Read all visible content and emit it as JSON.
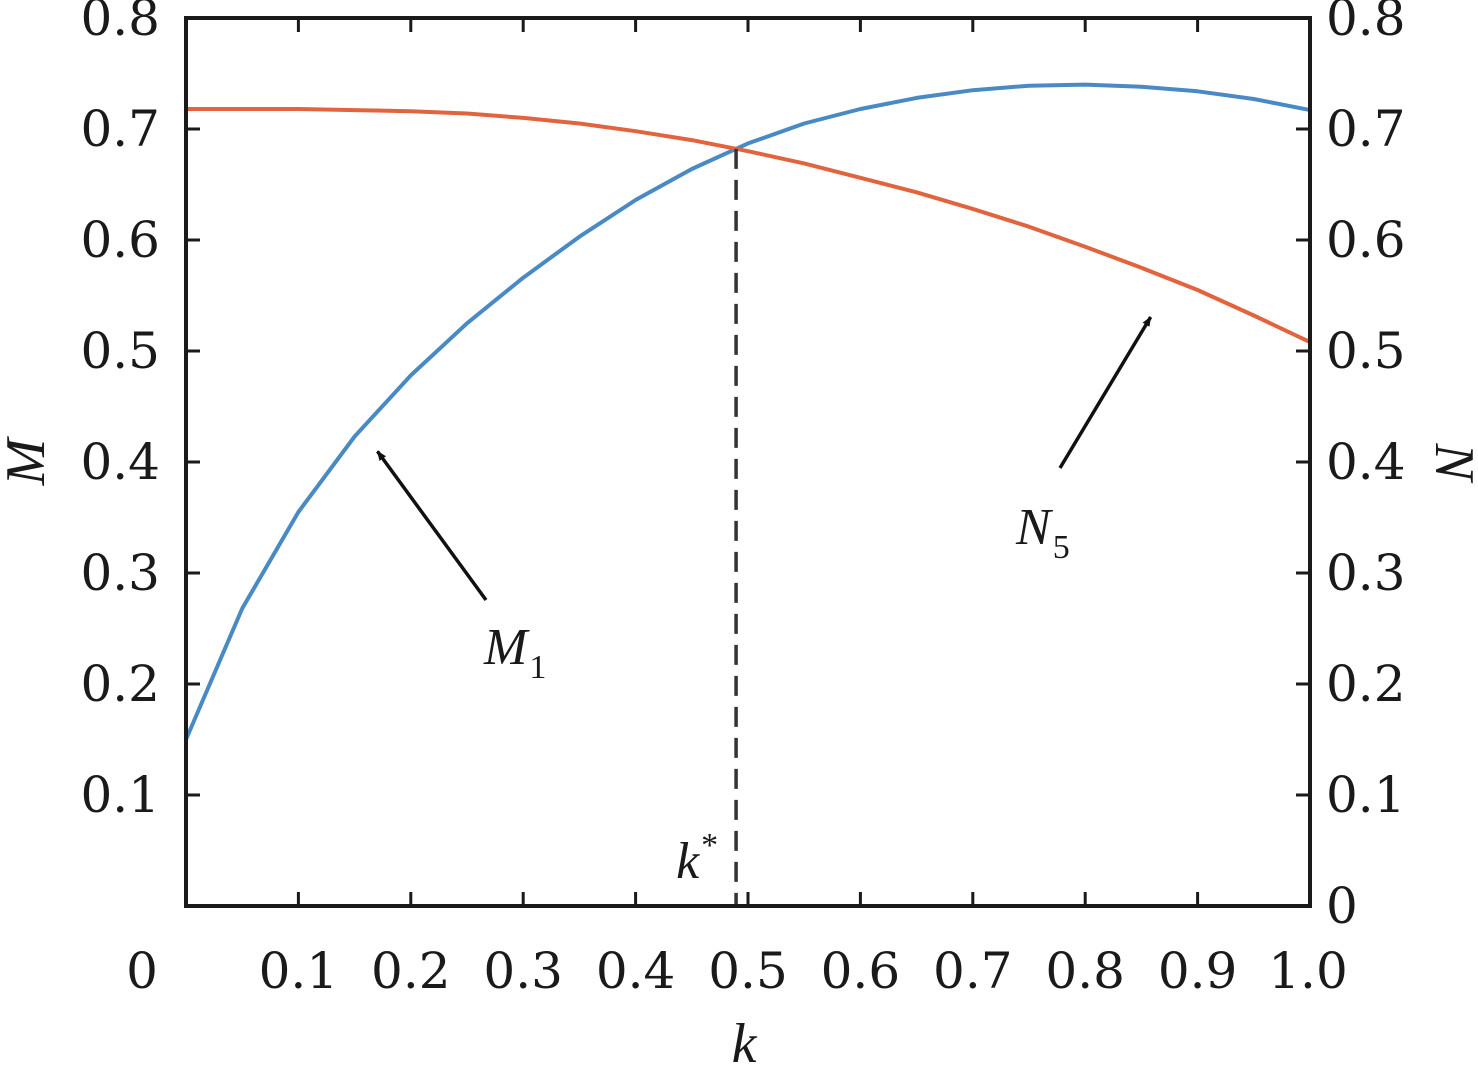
{
  "chart_data": {
    "type": "line",
    "xlabel": "k",
    "ylabel": "M",
    "ylabel_right": "N",
    "xlim": [
      0,
      1.0
    ],
    "ylim": [
      0,
      0.8
    ],
    "ylim_right": [
      0,
      0.8
    ],
    "x_ticks": [
      "0",
      "0.1",
      "0.2",
      "0.3",
      "0.4",
      "0.5",
      "0.6",
      "0.7",
      "0.8",
      "0.9",
      "1.0"
    ],
    "y_ticks_left": [
      "0.1",
      "0.2",
      "0.3",
      "0.4",
      "0.5",
      "0.6",
      "0.7",
      "0.8"
    ],
    "y_ticks_right": [
      "0",
      "0.1",
      "0.2",
      "0.3",
      "0.4",
      "0.5",
      "0.6",
      "0.7",
      "0.8"
    ],
    "grid": false,
    "series": [
      {
        "name": "M1",
        "color": "#4a8ac4",
        "x": [
          0,
          0.05,
          0.1,
          0.15,
          0.2,
          0.25,
          0.3,
          0.35,
          0.4,
          0.45,
          0.5,
          0.55,
          0.6,
          0.65,
          0.7,
          0.75,
          0.8,
          0.85,
          0.9,
          0.95,
          1.0
        ],
        "y": [
          0.15,
          0.268,
          0.355,
          0.423,
          0.478,
          0.525,
          0.566,
          0.603,
          0.636,
          0.664,
          0.687,
          0.705,
          0.718,
          0.728,
          0.735,
          0.739,
          0.74,
          0.738,
          0.734,
          0.727,
          0.717
        ]
      },
      {
        "name": "N5",
        "color": "#e2643e",
        "x": [
          0,
          0.05,
          0.1,
          0.15,
          0.2,
          0.25,
          0.3,
          0.35,
          0.4,
          0.45,
          0.5,
          0.55,
          0.6,
          0.65,
          0.7,
          0.75,
          0.8,
          0.85,
          0.9,
          0.95,
          1.0
        ],
        "y": [
          0.718,
          0.718,
          0.718,
          0.717,
          0.716,
          0.714,
          0.71,
          0.705,
          0.698,
          0.69,
          0.68,
          0.669,
          0.656,
          0.643,
          0.628,
          0.612,
          0.594,
          0.575,
          0.555,
          0.532,
          0.508
        ]
      }
    ],
    "annotations": [
      {
        "text": "M",
        "sub": "1",
        "target": [
          0.165,
          0.415
        ]
      },
      {
        "text": "N",
        "sub": "5",
        "target": [
          0.86,
          0.545
        ]
      },
      {
        "text": "k",
        "sup": "*",
        "x": 0.495
      }
    ]
  }
}
